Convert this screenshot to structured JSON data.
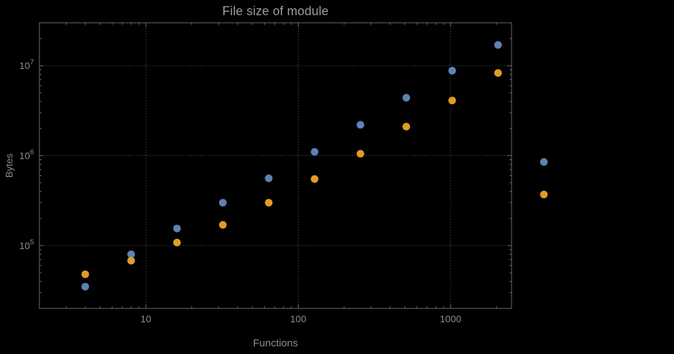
{
  "chart_data": {
    "type": "scatter",
    "title": "File size of module",
    "xlabel": "Functions",
    "ylabel": "Bytes",
    "x_scale": "log",
    "y_scale": "log",
    "xlim": [
      2,
      2512
    ],
    "ylim": [
      20000,
      30000000
    ],
    "grid": "dotted",
    "legend": "none",
    "x": [
      4,
      8,
      16,
      32,
      64,
      128,
      256,
      512,
      1024,
      2048,
      4096
    ],
    "series": [
      {
        "name": "blue",
        "color": "#5E81B5",
        "values": [
          35000,
          80000,
          155000,
          300000,
          560000,
          1100000,
          2200000,
          4400000,
          8800000,
          17000000,
          850000
        ]
      },
      {
        "name": "orange",
        "color": "#E19C24",
        "values": [
          48000,
          68000,
          108000,
          170000,
          300000,
          550000,
          1050000,
          2100000,
          4100000,
          8300000,
          370000
        ]
      }
    ],
    "x_ticks": [
      {
        "label": "10",
        "value": 10
      },
      {
        "label": "100",
        "value": 100
      },
      {
        "label": "1000",
        "value": 1000
      }
    ],
    "y_ticks": [
      {
        "base": "10",
        "exp": "5",
        "value": 100000
      },
      {
        "base": "10",
        "exp": "6",
        "value": 1000000
      },
      {
        "base": "10",
        "exp": "7",
        "value": 10000000
      }
    ],
    "colors": {
      "background": "#000000",
      "frame": "#6e6e6e",
      "grid": "#5f5f5f",
      "tick_text": "#8c8c8c",
      "title_text": "#9e9e9e"
    },
    "point_radius": 5.5
  }
}
